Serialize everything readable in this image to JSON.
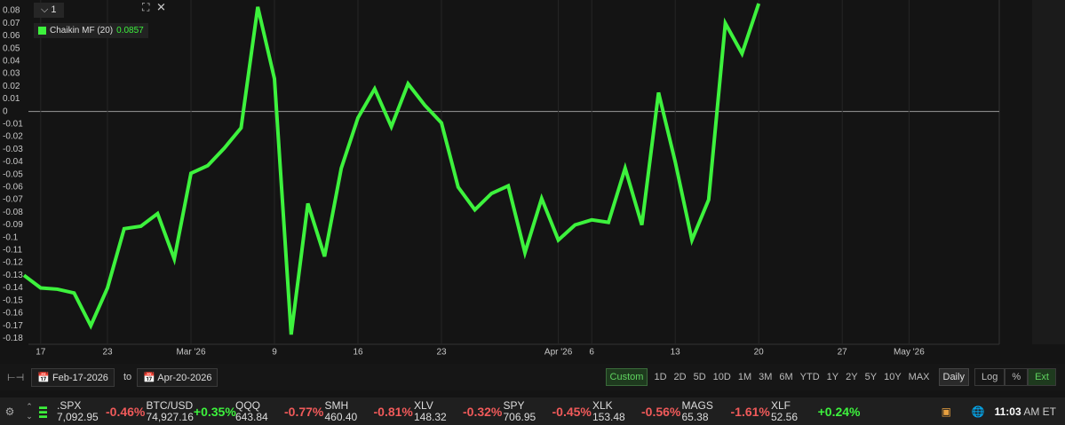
{
  "panel_number": "1",
  "chart_data": {
    "type": "line",
    "categories": [
      null,
      "17",
      null,
      null,
      null,
      "23",
      null,
      null,
      null,
      null,
      "Mar '26",
      null,
      null,
      null,
      null,
      "9",
      null,
      null,
      null,
      null,
      "16",
      null,
      null,
      null,
      null,
      "23",
      null,
      null,
      null,
      null,
      null,
      null,
      "Apr '26",
      null,
      "6",
      null,
      null,
      null,
      null,
      "13",
      null,
      null,
      null,
      null,
      "20",
      null,
      null,
      null,
      null,
      "27",
      null,
      null,
      null,
      "May '26"
    ],
    "series": [
      {
        "name": "Chaikin MF (20)",
        "color": "#3df23d",
        "values": [
          -0.13,
          -0.14,
          -0.141,
          -0.144,
          -0.17,
          -0.14,
          -0.093,
          -0.091,
          -0.081,
          -0.117,
          -0.049,
          -0.043,
          -0.029,
          -0.013,
          0.083,
          0.026,
          -0.177,
          -0.073,
          -0.115,
          -0.045,
          -0.005,
          0.018,
          -0.012,
          0.022,
          0.005,
          -0.009,
          -0.06,
          -0.078,
          -0.065,
          -0.059,
          -0.112,
          -0.069,
          -0.102,
          -0.09,
          -0.086,
          -0.088,
          -0.045,
          -0.09,
          0.015,
          -0.04,
          -0.102,
          -0.07,
          0.07,
          0.046,
          0.0857,
          null,
          null,
          null,
          null,
          null,
          null,
          null,
          null,
          null
        ]
      }
    ],
    "ylim": [
      -0.184,
      0.0885
    ],
    "yticks": [
      0.08,
      0.07,
      0.06,
      0.05,
      0.04,
      0.03,
      0.02,
      0.01,
      0,
      -0.01,
      -0.02,
      -0.03,
      -0.04,
      -0.05,
      -0.06,
      -0.07,
      -0.08,
      -0.09,
      -0.1,
      -0.11,
      -0.12,
      -0.13,
      -0.14,
      -0.15,
      -0.16,
      -0.17,
      -0.18
    ],
    "grid": true
  },
  "toolbar": {
    "start_date": "Feb-17-2026",
    "to": "to",
    "end_date": "Apr-20-2026",
    "active_range": "Custom",
    "ranges": [
      "1D",
      "2D",
      "5D",
      "10D",
      "1M",
      "3M",
      "6M",
      "YTD",
      "1Y",
      "2Y",
      "5Y",
      "10Y",
      "MAX"
    ],
    "interval": "Daily",
    "options": [
      "Log",
      "%",
      "Ext"
    ]
  },
  "ticker": [
    {
      "symbol": ".SPX",
      "price": "7,092.95",
      "change": "-0.46%"
    },
    {
      "symbol": "BTC/USD",
      "price": "74,927.16",
      "change": "+0.35%"
    },
    {
      "symbol": "QQQ",
      "price": "643.84",
      "change": "-0.77%"
    },
    {
      "symbol": "SMH",
      "price": "460.40",
      "change": "-0.81%"
    },
    {
      "symbol": "XLV",
      "price": "148.32",
      "change": "-0.32%"
    },
    {
      "symbol": "SPY",
      "price": "706.95",
      "change": "-0.45%"
    },
    {
      "symbol": "XLK",
      "price": "153.48",
      "change": "-0.56%"
    },
    {
      "symbol": "MAGS",
      "price": "65.38",
      "change": "-1.61%"
    },
    {
      "symbol": "XLF",
      "price": "52.56",
      "change": "+0.24%"
    }
  ],
  "clock": {
    "time": "11:03",
    "zone": "AM ET"
  }
}
